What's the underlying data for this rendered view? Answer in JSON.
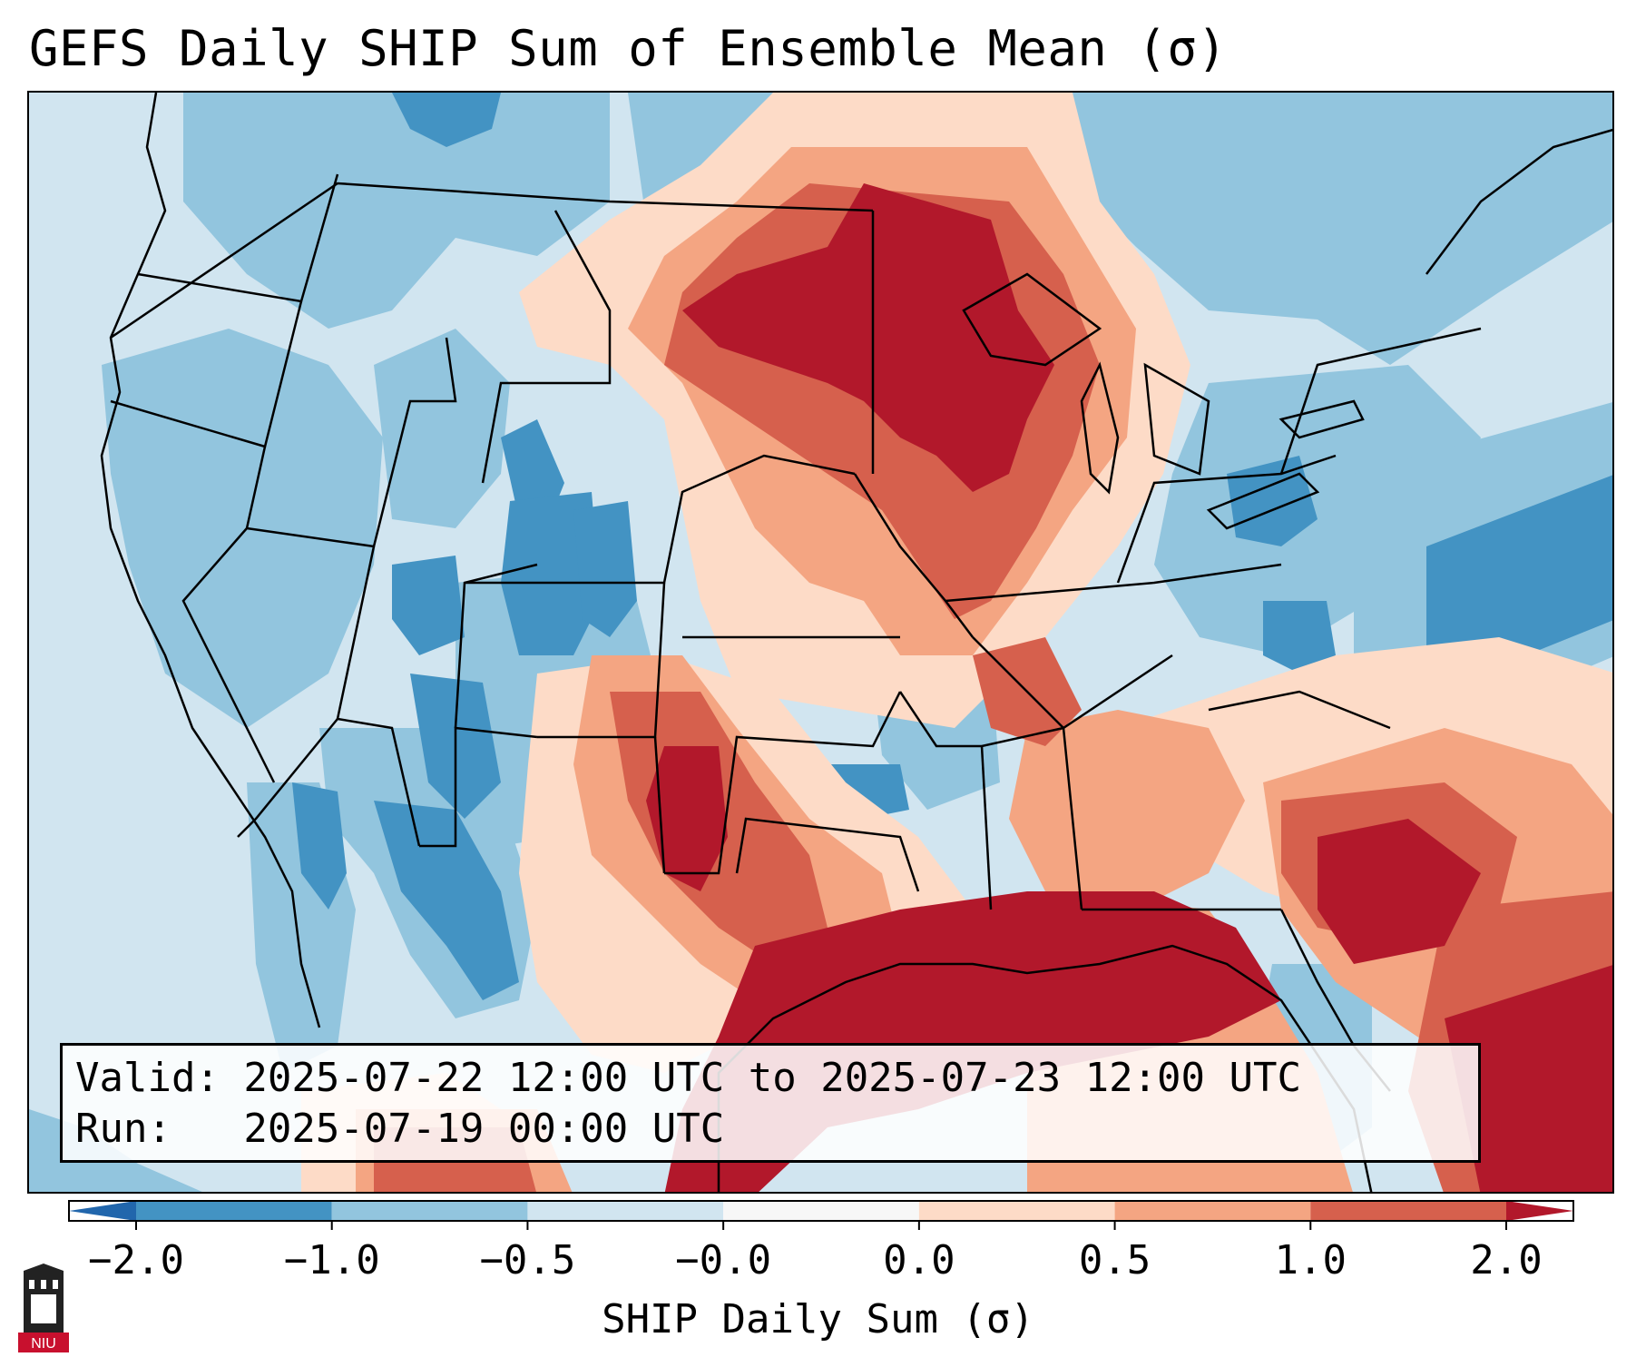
{
  "title": "GEFS Daily SHIP Sum of Ensemble Mean (σ)",
  "info": {
    "valid_line": "Valid: 2025-07-22 12:00 UTC to 2025-07-23 12:00 UTC",
    "run_line": "Run:   2025-07-19 00:00 UTC"
  },
  "colorbar": {
    "label": "SHIP Daily Sum (σ)",
    "ticks": [
      "−2.0",
      "−1.0",
      "−0.5",
      "−0.0",
      "0.0",
      "0.5",
      "1.0",
      "2.0"
    ],
    "colors": [
      "#4393c3",
      "#92c5de",
      "#d1e5f0",
      "#f7f7f7",
      "#fddbc7",
      "#f4a582",
      "#d6604d",
      "#b2182b"
    ],
    "extend_low_color": "#2166ac",
    "extend_high_color": "#b2182b"
  },
  "map": {
    "region": "Contiguous United States and Gulf of Mexico",
    "background_color": "#d1e5f0",
    "field_colors": {
      "strong_negative": "#4393c3",
      "moderate_negative": "#92c5de",
      "weak_negative": "#d1e5f0",
      "weak_positive": "#fddbc7",
      "moderate_positive": "#f4a582",
      "strong_positive": "#d6604d",
      "very_strong_positive": "#b2182b"
    }
  },
  "logo": {
    "text": "NIU"
  }
}
